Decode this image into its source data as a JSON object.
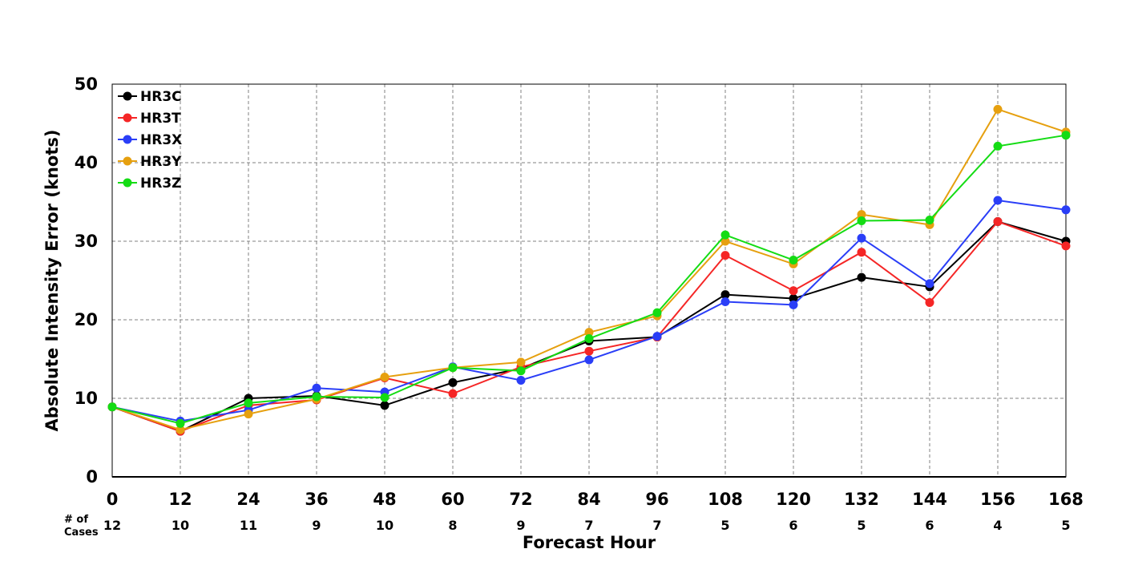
{
  "chart_data": {
    "type": "line",
    "title": "",
    "xlabel": "Forecast Hour",
    "ylabel": "Absolute Intensity Error (knots)",
    "x": [
      0,
      12,
      24,
      36,
      48,
      60,
      72,
      84,
      96,
      108,
      120,
      132,
      144,
      156,
      168
    ],
    "xlim": [
      0,
      168
    ],
    "ylim": [
      0,
      50
    ],
    "yticks": [
      0,
      10,
      20,
      30,
      40,
      50
    ],
    "grid": true,
    "legend_position": "top-left",
    "cases_label": [
      "# of",
      "Cases"
    ],
    "cases": [
      12,
      10,
      11,
      9,
      10,
      8,
      9,
      7,
      7,
      5,
      6,
      5,
      6,
      4,
      5
    ],
    "series": [
      {
        "name": "HR3C",
        "color": "#000000",
        "values": [
          8.9,
          5.8,
          10.0,
          10.3,
          9.1,
          12.0,
          13.8,
          17.3,
          17.8,
          23.2,
          22.7,
          25.4,
          24.2,
          32.5,
          30.0
        ]
      },
      {
        "name": "HR3T",
        "color": "#f52626",
        "values": [
          8.9,
          5.8,
          9.1,
          9.8,
          12.6,
          10.6,
          14.0,
          16.0,
          17.8,
          28.2,
          23.7,
          28.6,
          22.2,
          32.5,
          29.4
        ]
      },
      {
        "name": "HR3X",
        "color": "#2a3ef7",
        "values": [
          8.9,
          7.1,
          8.5,
          11.3,
          10.8,
          14.0,
          12.3,
          14.9,
          17.9,
          22.3,
          21.9,
          30.4,
          24.6,
          35.2,
          34.0
        ]
      },
      {
        "name": "HR3Y",
        "color": "#e6a00f",
        "values": [
          8.9,
          6.0,
          8.0,
          9.9,
          12.7,
          13.9,
          14.6,
          18.4,
          20.5,
          30.0,
          27.1,
          33.4,
          32.1,
          46.8,
          43.9
        ]
      },
      {
        "name": "HR3Z",
        "color": "#14dc14",
        "values": [
          8.9,
          6.8,
          9.4,
          10.2,
          10.1,
          13.9,
          13.5,
          17.6,
          20.9,
          30.8,
          27.6,
          32.6,
          32.7,
          42.1,
          43.5
        ]
      }
    ]
  }
}
